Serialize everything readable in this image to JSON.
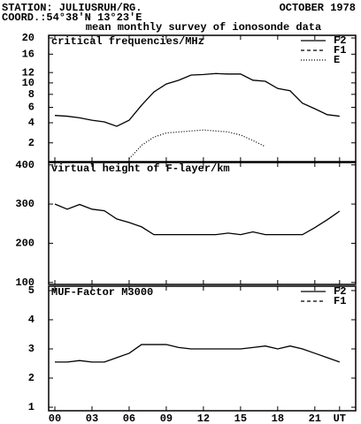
{
  "header": {
    "station": "STATION: JULIUSRUH/RG.",
    "month": "OCTOBER 1978",
    "coord": "COORD.:54°38'N 13°23'E",
    "subtitle": "mean monthly survey of ionosonde data"
  },
  "chart_data": [
    {
      "type": "line",
      "title": "critical frequencies/MHz",
      "yscale": "sqrt",
      "ylim": [
        0.75,
        20.7
      ],
      "yticks": [
        2,
        4,
        6,
        8,
        10,
        12,
        16,
        20
      ],
      "x": [
        0,
        1,
        2,
        3,
        4,
        5,
        6,
        7,
        8,
        9,
        10,
        11,
        12,
        13,
        14,
        15,
        16,
        17,
        18,
        19,
        20,
        21,
        22,
        23
      ],
      "series": [
        {
          "name": "F2",
          "style": "solid",
          "color": "#000000",
          "values": [
            4.9,
            4.8,
            4.6,
            4.3,
            4.1,
            3.6,
            4.3,
            6.3,
            8.4,
            9.8,
            10.5,
            11.5,
            11.6,
            11.8,
            11.7,
            11.7,
            10.5,
            10.3,
            9.0,
            8.6,
            6.6,
            5.8,
            5.0,
            4.8
          ]
        },
        {
          "name": "F1",
          "style": "dashed",
          "color": "#000000",
          "values": [
            null,
            null,
            null,
            null,
            null,
            null,
            null,
            null,
            null,
            null,
            null,
            null,
            null,
            null,
            null,
            null,
            null,
            null,
            null,
            null,
            null,
            null,
            null,
            null
          ]
        },
        {
          "name": "E",
          "style": "dotted",
          "color": "#000000",
          "values": [
            null,
            null,
            null,
            null,
            null,
            null,
            0.9,
            1.8,
            2.5,
            2.9,
            3.0,
            3.1,
            3.2,
            3.1,
            3.0,
            2.7,
            2.2,
            1.7,
            null,
            null,
            null,
            null,
            null,
            null
          ]
        }
      ]
    },
    {
      "type": "line",
      "title": "virtual height of F-layer/km",
      "ylim": [
        95,
        406
      ],
      "yticks": [
        100,
        200,
        300,
        400
      ],
      "x": [
        0,
        1,
        2,
        3,
        4,
        5,
        6,
        7,
        8,
        9,
        10,
        11,
        12,
        13,
        14,
        15,
        16,
        17,
        18,
        19,
        20,
        21,
        22,
        23
      ],
      "series": [
        {
          "style": "solid",
          "color": "#000000",
          "values": [
            300,
            287,
            299,
            287,
            283,
            262,
            253,
            242,
            222,
            222,
            222,
            222,
            222,
            222,
            226,
            222,
            229,
            222,
            222,
            222,
            222,
            240,
            260,
            282
          ]
        }
      ]
    },
    {
      "type": "line",
      "title": "MUF-Factor M3000",
      "ylim": [
        0.88,
        5.15
      ],
      "yticks": [
        1,
        2,
        3,
        4,
        5
      ],
      "xlim": [
        -0.5,
        24.3
      ],
      "xticks": [
        {
          "value": 0,
          "label": "00"
        },
        {
          "value": 3,
          "label": "03"
        },
        {
          "value": 6,
          "label": "06"
        },
        {
          "value": 9,
          "label": "09"
        },
        {
          "value": 12,
          "label": "12"
        },
        {
          "value": 15,
          "label": "15"
        },
        {
          "value": 18,
          "label": "18"
        },
        {
          "value": 21,
          "label": "21"
        },
        {
          "value": 23,
          "label": "UT"
        }
      ],
      "x": [
        0,
        1,
        2,
        3,
        4,
        5,
        6,
        7,
        8,
        9,
        10,
        11,
        12,
        13,
        14,
        15,
        16,
        17,
        18,
        19,
        20,
        21,
        22,
        23
      ],
      "series": [
        {
          "name": "F2",
          "style": "solid",
          "color": "#000000",
          "values": [
            2.55,
            2.55,
            2.6,
            2.55,
            2.55,
            2.7,
            2.85,
            3.15,
            3.15,
            3.15,
            3.05,
            3.0,
            3.0,
            3.0,
            3.0,
            3.0,
            3.05,
            3.1,
            3.0,
            3.1,
            3.0,
            2.85,
            2.7,
            2.55
          ]
        },
        {
          "name": "F1",
          "style": "dashed",
          "color": "#000000",
          "values": [
            null,
            null,
            null,
            null,
            null,
            null,
            null,
            null,
            null,
            null,
            null,
            null,
            null,
            null,
            null,
            null,
            null,
            null,
            null,
            null,
            null,
            null,
            null,
            null
          ]
        }
      ]
    }
  ]
}
